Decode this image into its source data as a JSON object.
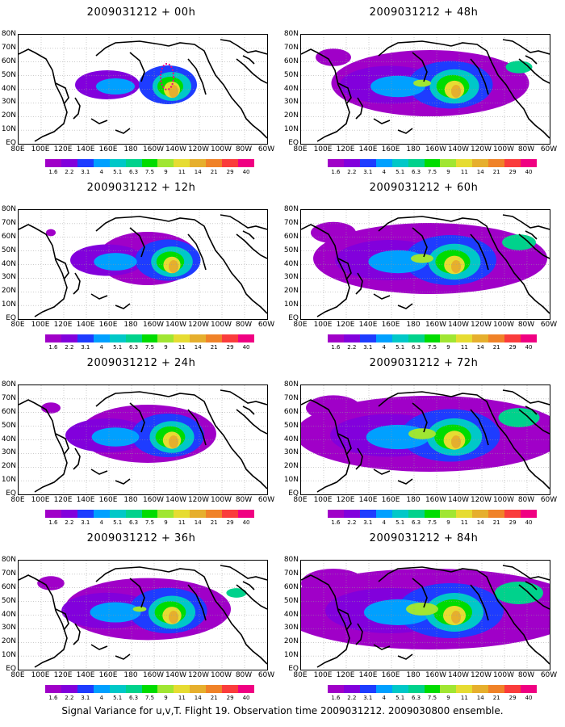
{
  "panels": [
    {
      "title": "2009031212 + 00h",
      "spread": 0.0
    },
    {
      "title": "2009031212 + 48h",
      "spread": 0.55
    },
    {
      "title": "2009031212 + 12h",
      "spread": 0.15
    },
    {
      "title": "2009031212 + 60h",
      "spread": 0.7
    },
    {
      "title": "2009031212 + 24h",
      "spread": 0.3
    },
    {
      "title": "2009031212 + 72h",
      "spread": 0.85
    },
    {
      "title": "2009031212 + 36h",
      "spread": 0.42
    },
    {
      "title": "2009031212 + 84h",
      "spread": 1.0
    }
  ],
  "axes": {
    "lat_labels": [
      "80N",
      "70N",
      "60N",
      "50N",
      "40N",
      "30N",
      "20N",
      "10N",
      "EQ"
    ],
    "lon_labels": [
      "80E",
      "100E",
      "120E",
      "140E",
      "160E",
      "180",
      "160W",
      "140W",
      "120W",
      "100W",
      "80W",
      "60W"
    ]
  },
  "legend": {
    "values": [
      "1.6",
      "2.2",
      "3.1",
      "4",
      "5.1",
      "6.3",
      "7.5",
      "9",
      "11",
      "14",
      "21",
      "29",
      "40"
    ],
    "colors": [
      "#a000c8",
      "#8200dc",
      "#1e3cff",
      "#00a0ff",
      "#00c8c8",
      "#00d28c",
      "#00dc00",
      "#a0e632",
      "#e6dc32",
      "#e6af2d",
      "#f08228",
      "#fa3c3c",
      "#f00082"
    ]
  },
  "caption": "Signal Variance for u,v,T. Flight 19. Observation time 2009031212. 2009030800 ensemble."
}
